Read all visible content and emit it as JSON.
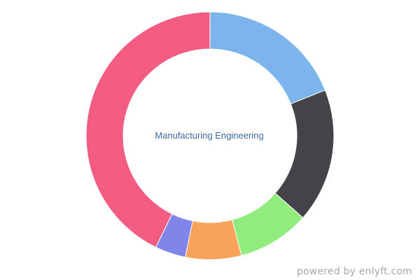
{
  "chart_data": {
    "type": "pie",
    "style": "donut",
    "center_label": "Manufacturing Engineering",
    "slices": [
      {
        "value": 19.0,
        "color": "#7cb5ec"
      },
      {
        "value": 17.5,
        "color": "#434348"
      },
      {
        "value": 9.4,
        "color": "#90ed7d"
      },
      {
        "value": 7.3,
        "color": "#f7a35c"
      },
      {
        "value": 4.0,
        "color": "#8085e9"
      },
      {
        "value": 42.8,
        "color": "#f15c80"
      }
    ]
  },
  "footer": {
    "powered_by": "powered by enlyft.com"
  }
}
